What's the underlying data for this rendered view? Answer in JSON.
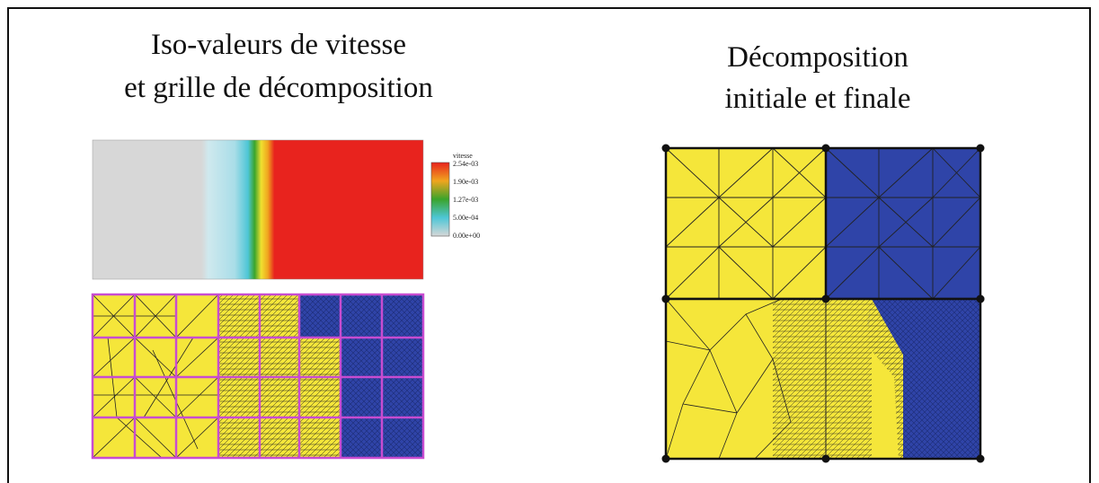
{
  "left_panel": {
    "title_line1": "Iso-valeurs de vitesse",
    "title_line2": "et grille de décomposition",
    "legend": {
      "title": "vitesse",
      "ticks": [
        "2.54e-03",
        "1.90e-03",
        "1.27e-03",
        "5.00e-04",
        "0.00e+00"
      ],
      "colors": [
        "#e8231e",
        "#f0a51e",
        "#3aa42c",
        "#4ec6d6",
        "#d7d7d7"
      ]
    }
  },
  "right_panel": {
    "title_line1": "Décomposition",
    "title_line2": "initiale et finale"
  },
  "colors": {
    "subdomain_yellow": "#f5e63a",
    "subdomain_blue": "#2f44a8",
    "grid_magenta": "#c84cd0",
    "velocity_red": "#e8231e",
    "velocity_grey": "#d7d7d7"
  }
}
